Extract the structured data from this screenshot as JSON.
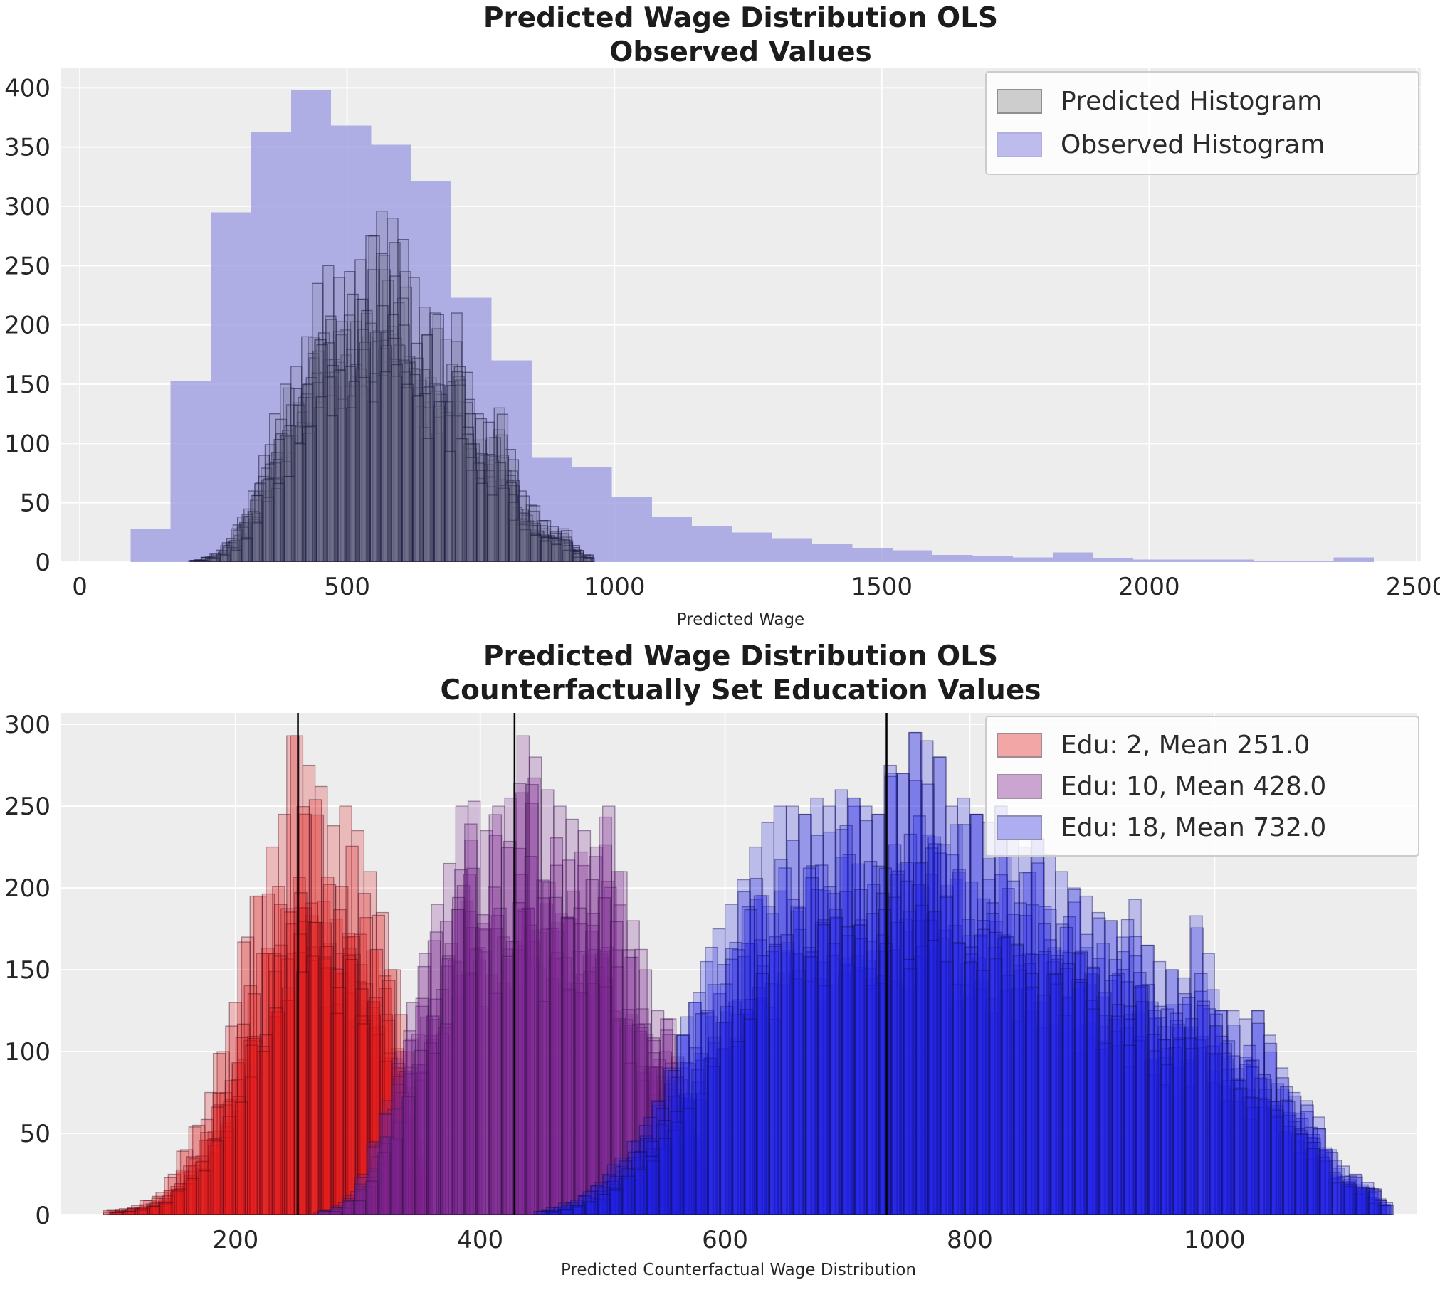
{
  "figure": {
    "kind": "matplotlib-two-panel-histograms",
    "background": "#ffffff",
    "plot_background": "#ededed",
    "grid_color": "#ffffff",
    "text_color": "#262626",
    "mean_line_color": "#000000"
  },
  "chart_data": [
    {
      "id": "top",
      "type": "bar",
      "title": [
        "Predicted Wage Distribution OLS",
        "Observed Values"
      ],
      "xlabel": "Predicted Wage",
      "ylabel": "",
      "xlim": [
        -36,
        2508
      ],
      "ylim": [
        0,
        417
      ],
      "x_ticks": [
        0,
        500,
        1000,
        1500,
        2000,
        2500
      ],
      "y_ticks": [
        0,
        50,
        100,
        150,
        200,
        250,
        300,
        350,
        400
      ],
      "grid": true,
      "legend_position": "upper right",
      "legend": [
        {
          "label": "Predicted Histogram",
          "swatch": {
            "fill": "#cdcdcd",
            "stroke": "#8f8f8f"
          }
        },
        {
          "label": "Observed Histogram",
          "swatch": {
            "fill": "#bdbcec",
            "stroke": "#b0afdf"
          }
        }
      ],
      "series": [
        {
          "name": "Observed Histogram",
          "style": "bars",
          "color": "rgba(154,152,224,0.75)",
          "bin_start": 95,
          "bin_width": 75,
          "values": [
            28,
            153,
            295,
            363,
            398,
            368,
            352,
            321,
            223,
            170,
            88,
            80,
            55,
            38,
            30,
            25,
            20,
            15,
            12,
            10,
            6,
            5,
            4,
            8,
            3,
            2,
            2,
            2,
            1,
            1,
            4
          ]
        },
        {
          "name": "Predicted Histogram",
          "style": "ensemble",
          "fill": "rgba(108,108,135,0.20)",
          "stroke": "rgba(28,28,66,0.55)",
          "layers": 15,
          "seed": 3,
          "bin_start": 215,
          "bin_width": 20,
          "values": [
            2,
            5,
            10,
            20,
            38,
            60,
            90,
            125,
            150,
            165,
            190,
            235,
            250,
            240,
            245,
            255,
            275,
            296,
            290,
            272,
            240,
            215,
            210,
            188,
            210,
            160,
            125,
            118,
            130,
            95,
            60,
            48,
            35,
            30,
            28,
            14,
            6
          ]
        }
      ],
      "mean_lines": []
    },
    {
      "id": "bottom",
      "type": "bar",
      "title": [
        "Predicted Wage Distribution OLS",
        "Counterfactually Set Education Values"
      ],
      "xlabel": "Predicted Counterfactual Wage Distribution",
      "ylabel": "",
      "xlim": [
        57,
        1165
      ],
      "ylim": [
        0,
        307
      ],
      "x_ticks": [
        200,
        400,
        600,
        800,
        1000
      ],
      "y_ticks": [
        0,
        50,
        100,
        150,
        200,
        250,
        300
      ],
      "grid": true,
      "legend_position": "upper right",
      "legend": [
        {
          "label": "Edu: 2, Mean 251.0",
          "swatch": {
            "fill": "#f2a6a6",
            "stroke": "#a08d92"
          }
        },
        {
          "label": "Edu: 10, Mean 428.0",
          "swatch": {
            "fill": "#c9a5cf",
            "stroke": "#9d8fa0"
          }
        },
        {
          "label": "Edu: 18, Mean 732.0",
          "swatch": {
            "fill": "#aeadf2",
            "stroke": "#8f8fb0"
          }
        }
      ],
      "series": [
        {
          "name": "Edu: 2, Mean 251.0",
          "education": 2,
          "mean": 251.0,
          "style": "ensemble",
          "fill": "rgba(226,24,24,0.24)",
          "stroke": "rgba(70,12,28,0.45)",
          "layers": 12,
          "seed": 11,
          "bin_start": 95,
          "bin_width": 10,
          "values": [
            3,
            4,
            6,
            9,
            14,
            25,
            40,
            55,
            75,
            100,
            130,
            170,
            195,
            225,
            245,
            293,
            275,
            262,
            238,
            250,
            235,
            210,
            185,
            150,
            100,
            45
          ]
        },
        {
          "name": "Edu: 10, Mean 428.0",
          "education": 10,
          "mean": 428.0,
          "style": "ensemble",
          "fill": "rgba(126,36,146,0.24)",
          "stroke": "rgba(52,18,66,0.45)",
          "layers": 12,
          "seed": 23,
          "bin_start": 270,
          "bin_width": 10,
          "values": [
            3,
            6,
            12,
            25,
            45,
            70,
            100,
            130,
            160,
            190,
            215,
            250,
            253,
            235,
            250,
            255,
            293,
            280,
            260,
            250,
            242,
            235,
            225,
            250,
            210,
            180,
            150,
            125,
            120,
            90,
            50
          ]
        },
        {
          "name": "Edu: 18, Mean 732.0",
          "education": 18,
          "mean": 732.0,
          "style": "ensemble",
          "fill": "rgba(34,34,228,0.24)",
          "stroke": "rgba(16,16,84,0.45)",
          "layers": 12,
          "seed": 5,
          "bin_start": 450,
          "bin_width": 10,
          "values": [
            3,
            5,
            8,
            12,
            18,
            25,
            35,
            45,
            55,
            70,
            90,
            110,
            130,
            155,
            175,
            190,
            205,
            225,
            240,
            250,
            250,
            245,
            255,
            250,
            260,
            255,
            250,
            245,
            275,
            270,
            295,
            290,
            280,
            250,
            255,
            245,
            240,
            250,
            235,
            225,
            230,
            220,
            210,
            200,
            195,
            185,
            180,
            170,
            193,
            165,
            155,
            150,
            145,
            183,
            160,
            125,
            125,
            120,
            125,
            110,
            90,
            75,
            70,
            60,
            40,
            30,
            25,
            20,
            10
          ]
        }
      ],
      "mean_lines": [
        251,
        428,
        732
      ]
    }
  ]
}
